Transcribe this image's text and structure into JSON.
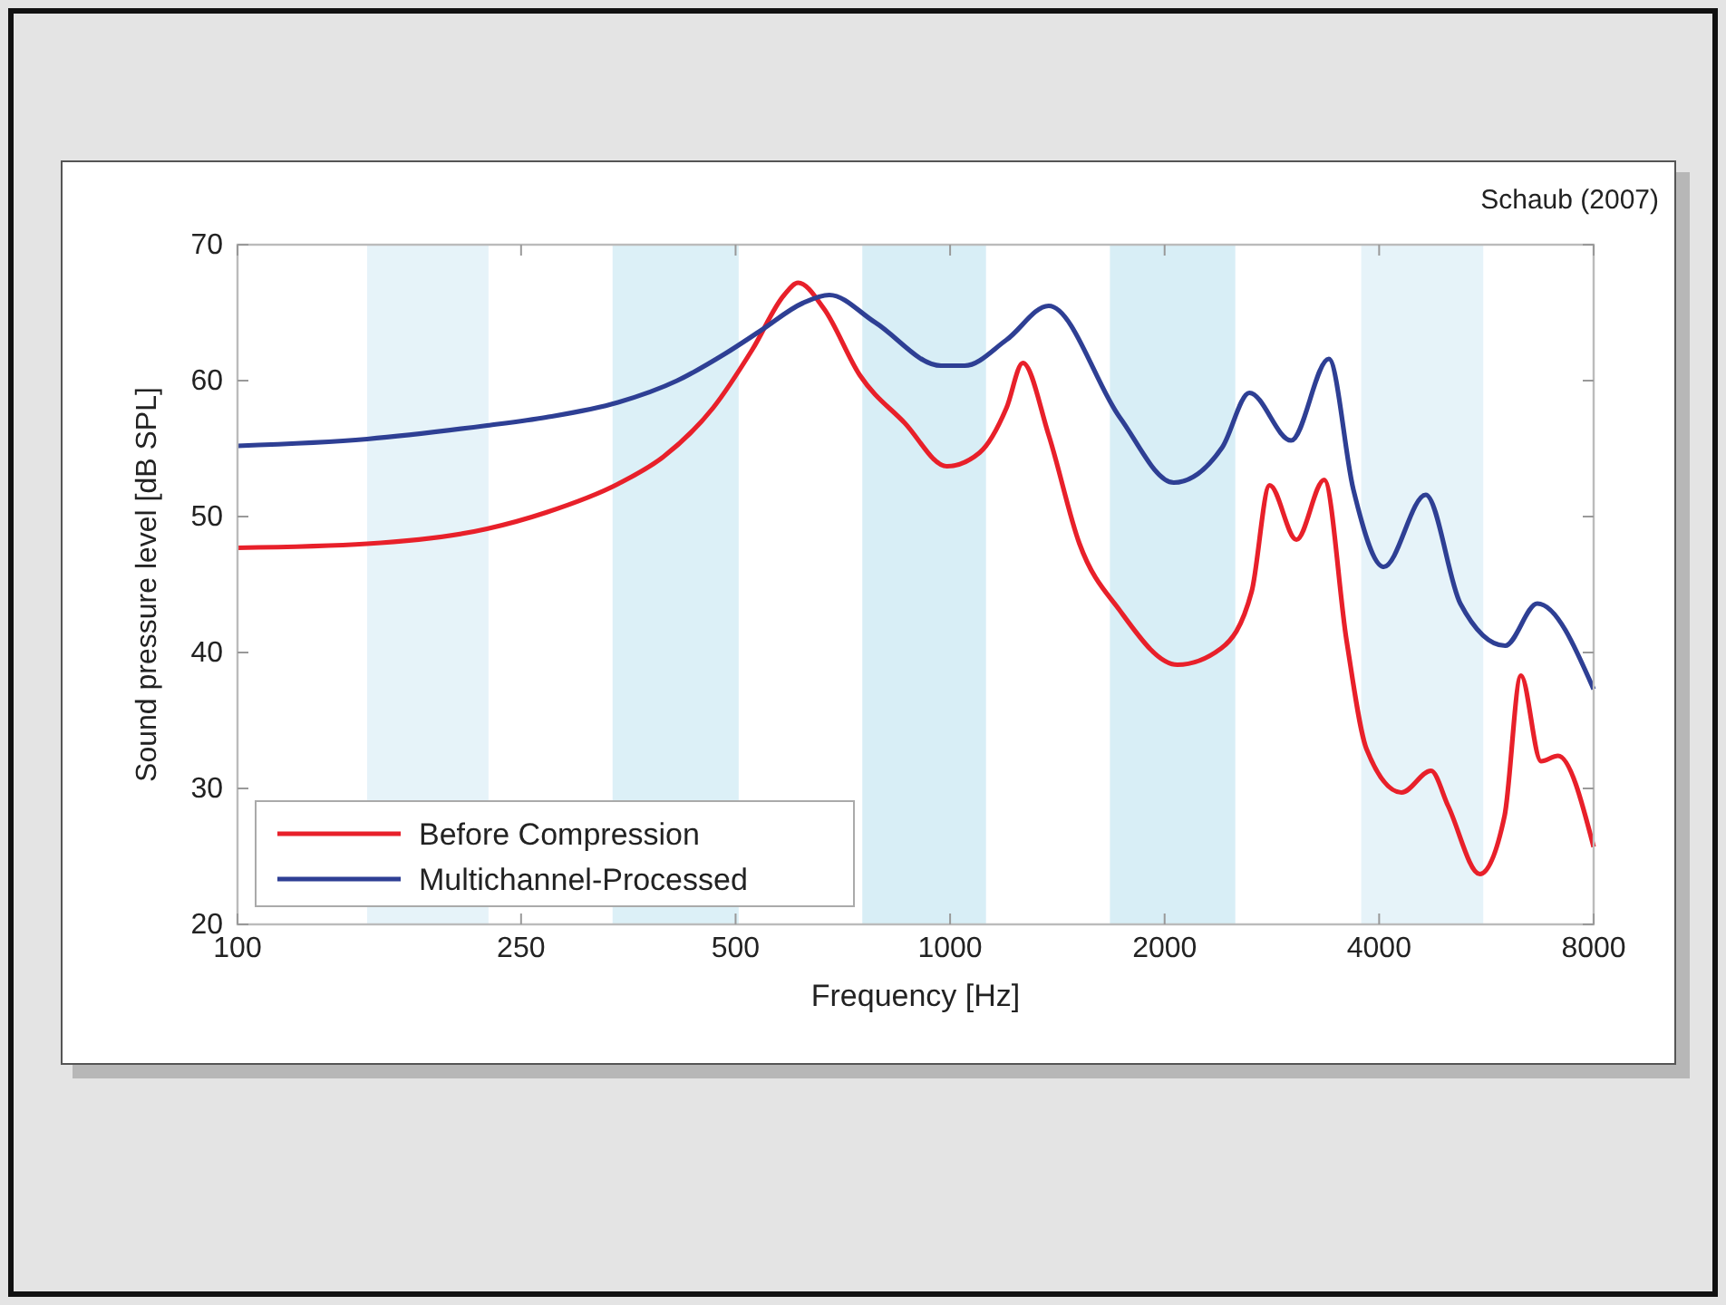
{
  "chart_data": {
    "type": "line",
    "xlabel": "Frequency [Hz]",
    "ylabel": "Sound pressure level [dB SPL]",
    "annotations": [
      "Schaub (2007)"
    ],
    "log": "x",
    "xlim": [
      100,
      8000
    ],
    "xticks": [
      100,
      250,
      500,
      1000,
      2000,
      4000,
      8000
    ],
    "ylim": [
      20,
      70
    ],
    "yticks": [
      20,
      30,
      40,
      50,
      60,
      70
    ],
    "grid": false,
    "legend": "bottom left",
    "line_style": "solid",
    "bands": [
      {
        "axis": "x",
        "from": 152,
        "to": 225,
        "color": "#e6f3f9"
      },
      {
        "axis": "x",
        "from": 336,
        "to": 505,
        "color": "#dcf0f7"
      },
      {
        "axis": "x",
        "from": 753,
        "to": 1123,
        "color": "#d8eef6"
      },
      {
        "axis": "x",
        "from": 1676,
        "to": 2513,
        "color": "#d8eef6"
      },
      {
        "axis": "x",
        "from": 3775,
        "to": 5600,
        "color": "#e6f3f9"
      }
    ],
    "series": [
      {
        "name": "Before Compression",
        "color": "#e8202a",
        "x": [
          100,
          152,
          224,
          271,
          342,
          396,
          465,
          528,
          585,
          612,
          665,
          747,
          863,
          990,
          1100,
          1200,
          1265,
          1375,
          1519,
          1730,
          2085,
          2400,
          2650,
          2808,
          3062,
          3350,
          3600,
          3840,
          4300,
          4730,
          5000,
          5540,
          6000,
          6324,
          6750,
          7130,
          8000
        ],
        "values": [
          47.7,
          48.0,
          49.1,
          50.3,
          52.4,
          54.4,
          58.0,
          62.3,
          66.3,
          67.2,
          65.3,
          60.4,
          56.9,
          53.7,
          54.7,
          58.0,
          61.3,
          56.0,
          48.0,
          43.1,
          39.1,
          40.3,
          44.5,
          52.3,
          48.3,
          52.7,
          40.9,
          32.9,
          29.7,
          31.3,
          28.7,
          23.7,
          28.0,
          38.3,
          32.0,
          32.4,
          25.7
        ]
      },
      {
        "name": "Multichannel-Processed",
        "color": "#2e3f94",
        "x": [
          100,
          152,
          224,
          271,
          342,
          414,
          484,
          543,
          621,
          677,
          784,
          971,
          1048,
          1200,
          1375,
          1730,
          2060,
          2410,
          2630,
          3010,
          3400,
          3680,
          4060,
          4650,
          5200,
          6010,
          6670,
          8000
        ],
        "values": [
          55.2,
          55.7,
          56.7,
          57.3,
          58.4,
          60.0,
          62.0,
          63.7,
          65.7,
          66.3,
          64.3,
          61.1,
          61.1,
          63.0,
          65.5,
          57.3,
          52.5,
          55.1,
          59.1,
          55.6,
          61.6,
          52.0,
          46.3,
          51.6,
          43.6,
          40.5,
          43.6,
          37.3
        ]
      }
    ]
  }
}
